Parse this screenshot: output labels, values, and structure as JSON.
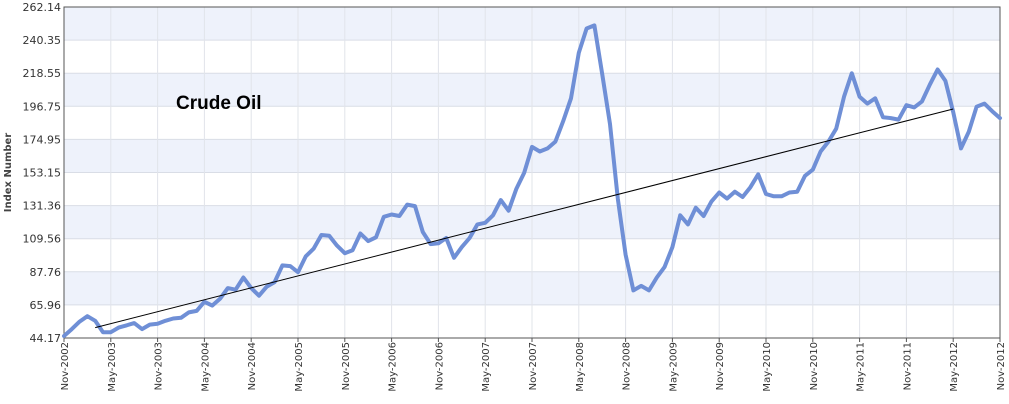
{
  "chart_data": {
    "type": "line",
    "title": "",
    "annotation": "Crude Oil",
    "xlabel": "",
    "ylabel": "Index Number",
    "ylim": [
      44.17,
      262.14
    ],
    "xlim": [
      "2002-11",
      "2012-11"
    ],
    "y_ticks": [
      "44.17",
      "65.96",
      "87.76",
      "109.56",
      "131.36",
      "153.15",
      "174.95",
      "196.75",
      "218.55",
      "240.35",
      "262.14"
    ],
    "x_ticks": [
      "Nov-2002",
      "May-2003",
      "Nov-2003",
      "May-2004",
      "Nov-2004",
      "May-2005",
      "Nov-2005",
      "May-2006",
      "Nov-2006",
      "May-2007",
      "Nov-2007",
      "May-2008",
      "Nov-2008",
      "May-2009",
      "Nov-2009",
      "May-2010",
      "Nov-2010",
      "May-2011",
      "Nov-2011",
      "May-2012",
      "Nov-2012"
    ],
    "grid": true,
    "legend": "none",
    "series": [
      {
        "color": "#6f8fd6",
        "points": [
          [
            "2002-11",
            45.5
          ],
          [
            "2002-12",
            50
          ],
          [
            "2003-01",
            55
          ],
          [
            "2003-02",
            58.5
          ],
          [
            "2003-03",
            55.5
          ],
          [
            "2003-04",
            48
          ],
          [
            "2003-05",
            48
          ],
          [
            "2003-06",
            51
          ],
          [
            "2003-07",
            52.5
          ],
          [
            "2003-08",
            54
          ],
          [
            "2003-09",
            50
          ],
          [
            "2003-10",
            53
          ],
          [
            "2003-11",
            53.5
          ],
          [
            "2003-12",
            55.5
          ],
          [
            "2004-01",
            57
          ],
          [
            "2004-02",
            57.5
          ],
          [
            "2004-03",
            61
          ],
          [
            "2004-04",
            62
          ],
          [
            "2004-05",
            68
          ],
          [
            "2004-06",
            65.5
          ],
          [
            "2004-07",
            70
          ],
          [
            "2004-08",
            77
          ],
          [
            "2004-09",
            76
          ],
          [
            "2004-10",
            84
          ],
          [
            "2004-11",
            77
          ],
          [
            "2004-12",
            72
          ],
          [
            "2005-01",
            78
          ],
          [
            "2005-02",
            81
          ],
          [
            "2005-03",
            92
          ],
          [
            "2005-04",
            91.5
          ],
          [
            "2005-05",
            87.5
          ],
          [
            "2005-06",
            98
          ],
          [
            "2005-07",
            103
          ],
          [
            "2005-08",
            112
          ],
          [
            "2005-09",
            111.5
          ],
          [
            "2005-10",
            105
          ],
          [
            "2005-11",
            100
          ],
          [
            "2005-12",
            102
          ],
          [
            "2006-01",
            113
          ],
          [
            "2006-02",
            108
          ],
          [
            "2006-03",
            110.5
          ],
          [
            "2006-04",
            124
          ],
          [
            "2006-05",
            125.5
          ],
          [
            "2006-06",
            124.5
          ],
          [
            "2006-07",
            132
          ],
          [
            "2006-08",
            131
          ],
          [
            "2006-09",
            114
          ],
          [
            "2006-10",
            106
          ],
          [
            "2006-11",
            106.5
          ],
          [
            "2006-12",
            110
          ],
          [
            "2007-01",
            97
          ],
          [
            "2007-02",
            104
          ],
          [
            "2007-03",
            110
          ],
          [
            "2007-04",
            119
          ],
          [
            "2007-05",
            120
          ],
          [
            "2007-06",
            125
          ],
          [
            "2007-07",
            135
          ],
          [
            "2007-08",
            128
          ],
          [
            "2007-09",
            142.5
          ],
          [
            "2007-10",
            153
          ],
          [
            "2007-11",
            170
          ],
          [
            "2007-12",
            167
          ],
          [
            "2008-01",
            169
          ],
          [
            "2008-02",
            173.5
          ],
          [
            "2008-03",
            187
          ],
          [
            "2008-04",
            202
          ],
          [
            "2008-05",
            232
          ],
          [
            "2008-06",
            248
          ],
          [
            "2008-07",
            250
          ],
          [
            "2008-08",
            218
          ],
          [
            "2008-09",
            185
          ],
          [
            "2008-10",
            136
          ],
          [
            "2008-11",
            99
          ],
          [
            "2008-12",
            75.5
          ],
          [
            "2009-01",
            78.5
          ],
          [
            "2009-02",
            75.5
          ],
          [
            "2009-03",
            84
          ],
          [
            "2009-04",
            91
          ],
          [
            "2009-05",
            104
          ],
          [
            "2009-06",
            125
          ],
          [
            "2009-07",
            119
          ],
          [
            "2009-08",
            130
          ],
          [
            "2009-09",
            124.5
          ],
          [
            "2009-10",
            134
          ],
          [
            "2009-11",
            140
          ],
          [
            "2009-12",
            136
          ],
          [
            "2010-01",
            140.5
          ],
          [
            "2010-02",
            137
          ],
          [
            "2010-03",
            143.5
          ],
          [
            "2010-04",
            152
          ],
          [
            "2010-05",
            139
          ],
          [
            "2010-06",
            137.5
          ],
          [
            "2010-07",
            137.5
          ],
          [
            "2010-08",
            140
          ],
          [
            "2010-09",
            140.5
          ],
          [
            "2010-10",
            151
          ],
          [
            "2010-11",
            155
          ],
          [
            "2010-12",
            167
          ],
          [
            "2011-01",
            173.5
          ],
          [
            "2011-02",
            182
          ],
          [
            "2011-03",
            203
          ],
          [
            "2011-04",
            218.5
          ],
          [
            "2011-05",
            203
          ],
          [
            "2011-06",
            198.5
          ],
          [
            "2011-07",
            202
          ],
          [
            "2011-08",
            189.5
          ],
          [
            "2011-09",
            189
          ],
          [
            "2011-10",
            188
          ],
          [
            "2011-11",
            197.5
          ],
          [
            "2011-12",
            196
          ],
          [
            "2012-01",
            200
          ],
          [
            "2012-02",
            211
          ],
          [
            "2012-03",
            221
          ],
          [
            "2012-04",
            213.5
          ],
          [
            "2012-05",
            193
          ],
          [
            "2012-06",
            169
          ],
          [
            "2012-07",
            180
          ],
          [
            "2012-08",
            196.5
          ],
          [
            "2012-09",
            198.5
          ],
          [
            "2012-10",
            193.5
          ],
          [
            "2012-11",
            189
          ]
        ]
      }
    ],
    "trendline": {
      "color": "#000000",
      "points": [
        [
          "2003-03",
          51
        ],
        [
          "2012-05",
          195
        ]
      ]
    }
  }
}
